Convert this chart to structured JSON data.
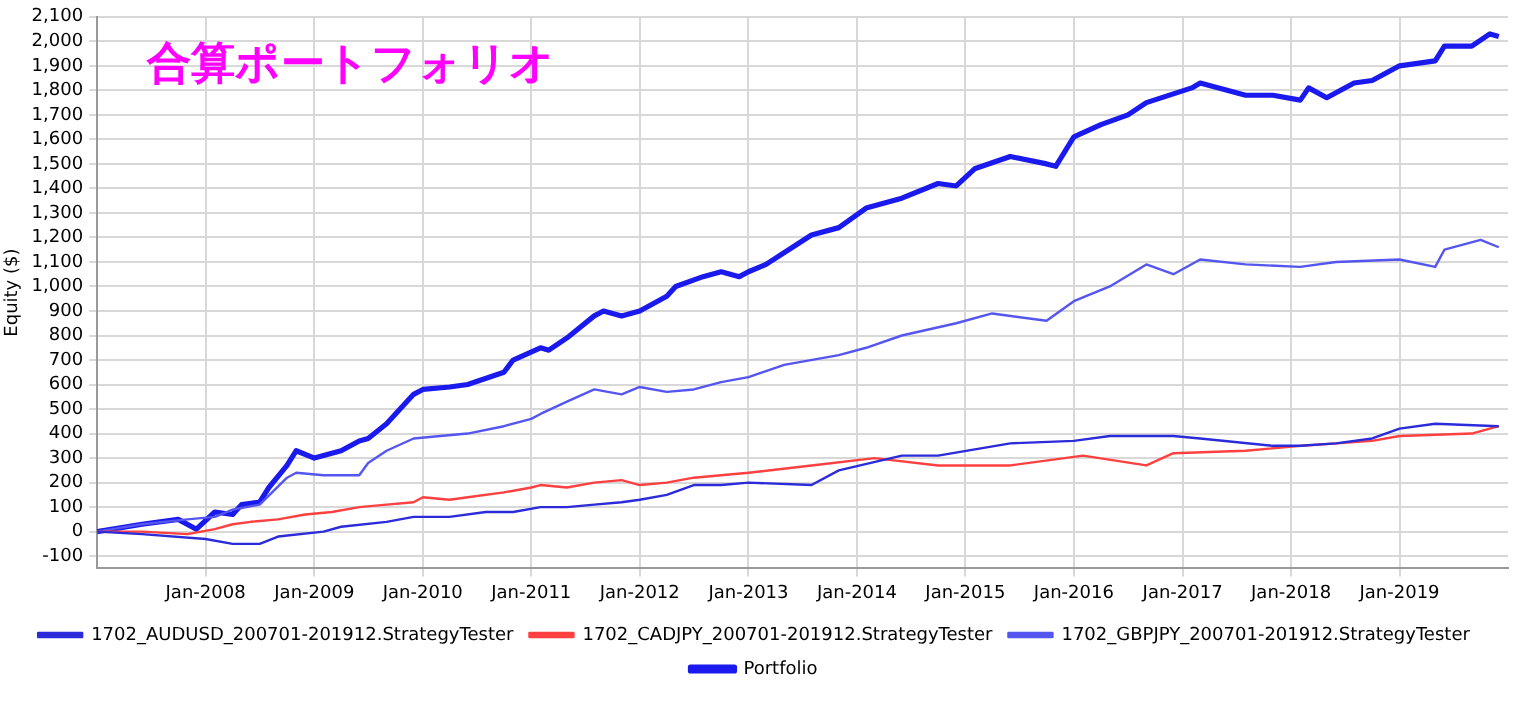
{
  "chart_data": {
    "type": "line",
    "title": "合算ポートフォリオ",
    "ylabel": "Equity ($)",
    "xlim": [
      "2007-01",
      "2020-01"
    ],
    "xticks": [
      {
        "value": "2008-01",
        "label": "Jan-2008"
      },
      {
        "value": "2009-01",
        "label": "Jan-2009"
      },
      {
        "value": "2010-01",
        "label": "Jan-2010"
      },
      {
        "value": "2011-01",
        "label": "Jan-2011"
      },
      {
        "value": "2012-01",
        "label": "Jan-2012"
      },
      {
        "value": "2013-01",
        "label": "Jan-2013"
      },
      {
        "value": "2014-01",
        "label": "Jan-2014"
      },
      {
        "value": "2015-01",
        "label": "Jan-2015"
      },
      {
        "value": "2016-01",
        "label": "Jan-2016"
      },
      {
        "value": "2017-01",
        "label": "Jan-2017"
      },
      {
        "value": "2018-01",
        "label": "Jan-2018"
      },
      {
        "value": "2019-01",
        "label": "Jan-2019"
      }
    ],
    "ylim": [
      -150,
      2100
    ],
    "yticks": [
      {
        "value": -100,
        "label": "-100"
      },
      0,
      100,
      200,
      300,
      400,
      500,
      600,
      700,
      800,
      900,
      {
        "value": 1000,
        "label": "1,000"
      },
      {
        "value": 1100,
        "label": "1,100"
      },
      {
        "value": 1200,
        "label": "1,200"
      },
      {
        "value": 1300,
        "label": "1,300"
      },
      {
        "value": 1400,
        "label": "1,400"
      },
      {
        "value": 1500,
        "label": "1,500"
      },
      {
        "value": 1600,
        "label": "1,600"
      },
      {
        "value": 1700,
        "label": "1,700"
      },
      {
        "value": 1800,
        "label": "1,800"
      },
      {
        "value": 1900,
        "label": "1,900"
      },
      {
        "value": 2000,
        "label": "2,000"
      },
      {
        "value": 2100,
        "label": "2,100"
      }
    ],
    "grid": true,
    "legend": "bottom",
    "marker": "none",
    "line_style": "solid",
    "series": [
      {
        "name": "1702_AUDUSD_200701-201912.StrategyTester",
        "color": "#2b2bd9",
        "x": [
          "2007-01",
          "2007-06",
          "2008-01",
          "2008-04",
          "2008-07",
          "2008-09",
          "2009-02",
          "2009-04",
          "2009-09",
          "2009-12",
          "2010-04",
          "2010-08",
          "2010-11",
          "2011-02",
          "2011-05",
          "2011-08",
          "2011-11",
          "2012-01",
          "2012-04",
          "2012-07",
          "2012-10",
          "2013-01",
          "2013-08",
          "2013-11",
          "2014-06",
          "2014-10",
          "2015-06",
          "2016-01",
          "2016-05",
          "2016-12",
          "2017-03",
          "2017-11",
          "2018-02",
          "2018-06",
          "2018-10",
          "2019-01",
          "2019-05",
          "2019-12"
        ],
        "values": [
          0,
          -10,
          -30,
          -50,
          -50,
          -20,
          0,
          20,
          40,
          60,
          60,
          80,
          80,
          100,
          100,
          110,
          120,
          130,
          150,
          190,
          190,
          200,
          190,
          250,
          310,
          310,
          360,
          370,
          390,
          390,
          380,
          350,
          350,
          360,
          380,
          420,
          440,
          430
        ]
      },
      {
        "name": "1702_CADJPY_200701-201912.StrategyTester",
        "color": "#ff4040",
        "x": [
          "2007-01",
          "2007-06",
          "2007-11",
          "2008-02",
          "2008-04",
          "2008-06",
          "2008-09",
          "2008-12",
          "2009-03",
          "2009-06",
          "2009-09",
          "2009-12",
          "2010-01",
          "2010-04",
          "2010-06",
          "2010-10",
          "2011-01",
          "2011-02",
          "2011-05",
          "2011-08",
          "2011-11",
          "2012-01",
          "2012-04",
          "2012-07",
          "2012-10",
          "2013-01",
          "2013-08",
          "2014-03",
          "2014-10",
          "2015-06",
          "2016-02",
          "2016-09",
          "2016-12",
          "2017-08",
          "2018-02",
          "2018-10",
          "2019-01",
          "2019-09",
          "2019-12"
        ],
        "values": [
          0,
          0,
          -10,
          10,
          30,
          40,
          50,
          70,
          80,
          100,
          110,
          120,
          140,
          130,
          140,
          160,
          180,
          190,
          180,
          200,
          210,
          190,
          200,
          220,
          230,
          240,
          270,
          300,
          270,
          270,
          310,
          270,
          320,
          330,
          350,
          370,
          390,
          400,
          430
        ]
      },
      {
        "name": "1702_GBPJPY_200701-201912.StrategyTester",
        "color": "#5555f0",
        "x": [
          "2007-01",
          "2007-06",
          "2007-11",
          "2008-02",
          "2008-04",
          "2008-07",
          "2008-10",
          "2008-11",
          "2009-02",
          "2009-06",
          "2009-07",
          "2009-09",
          "2009-12",
          "2010-03",
          "2010-06",
          "2010-10",
          "2011-01",
          "2011-02",
          "2011-05",
          "2011-08",
          "2011-11",
          "2012-01",
          "2012-04",
          "2012-07",
          "2012-10",
          "2013-01",
          "2013-05",
          "2013-11",
          "2014-02",
          "2014-06",
          "2014-12",
          "2015-04",
          "2015-10",
          "2016-01",
          "2016-05",
          "2016-09",
          "2016-12",
          "2017-03",
          "2017-08",
          "2018-02",
          "2018-06",
          "2019-01",
          "2019-05",
          "2019-06",
          "2019-10",
          "2019-12"
        ],
        "values": [
          0,
          30,
          50,
          60,
          90,
          110,
          220,
          240,
          230,
          230,
          280,
          330,
          380,
          390,
          400,
          430,
          460,
          480,
          530,
          580,
          560,
          590,
          570,
          580,
          610,
          630,
          680,
          720,
          750,
          800,
          850,
          890,
          860,
          940,
          1000,
          1090,
          1050,
          1110,
          1090,
          1080,
          1100,
          1110,
          1080,
          1150,
          1190,
          1160
        ]
      },
      {
        "name": "Portfolio",
        "color": "#1a1aee",
        "x": [
          "2007-01",
          "2007-06",
          "2007-10",
          "2007-12",
          "2008-02",
          "2008-04",
          "2008-05",
          "2008-07",
          "2008-08",
          "2008-10",
          "2008-11",
          "2009-01",
          "2009-04",
          "2009-06",
          "2009-07",
          "2009-09",
          "2009-12",
          "2010-01",
          "2010-04",
          "2010-06",
          "2010-10",
          "2010-11",
          "2011-02",
          "2011-03",
          "2011-05",
          "2011-08",
          "2011-09",
          "2011-11",
          "2012-01",
          "2012-04",
          "2012-05",
          "2012-08",
          "2012-10",
          "2012-12",
          "2013-01",
          "2013-03",
          "2013-08",
          "2013-11",
          "2014-02",
          "2014-06",
          "2014-10",
          "2014-12",
          "2015-02",
          "2015-06",
          "2015-10",
          "2015-11",
          "2016-01",
          "2016-04",
          "2016-07",
          "2016-09",
          "2017-02",
          "2017-03",
          "2017-08",
          "2017-11",
          "2018-02",
          "2018-03",
          "2018-05",
          "2018-08",
          "2018-10",
          "2019-01",
          "2019-05",
          "2019-06",
          "2019-09",
          "2019-11",
          "2019-12"
        ],
        "values": [
          0,
          30,
          50,
          10,
          80,
          70,
          110,
          120,
          180,
          270,
          330,
          300,
          330,
          370,
          380,
          440,
          560,
          580,
          590,
          600,
          650,
          700,
          750,
          740,
          790,
          880,
          900,
          880,
          900,
          960,
          1000,
          1040,
          1060,
          1040,
          1060,
          1090,
          1210,
          1240,
          1320,
          1360,
          1420,
          1410,
          1480,
          1530,
          1500,
          1490,
          1610,
          1660,
          1700,
          1750,
          1810,
          1830,
          1780,
          1780,
          1760,
          1810,
          1770,
          1830,
          1840,
          1900,
          1920,
          1980,
          1980,
          2030,
          2020
        ]
      }
    ]
  }
}
